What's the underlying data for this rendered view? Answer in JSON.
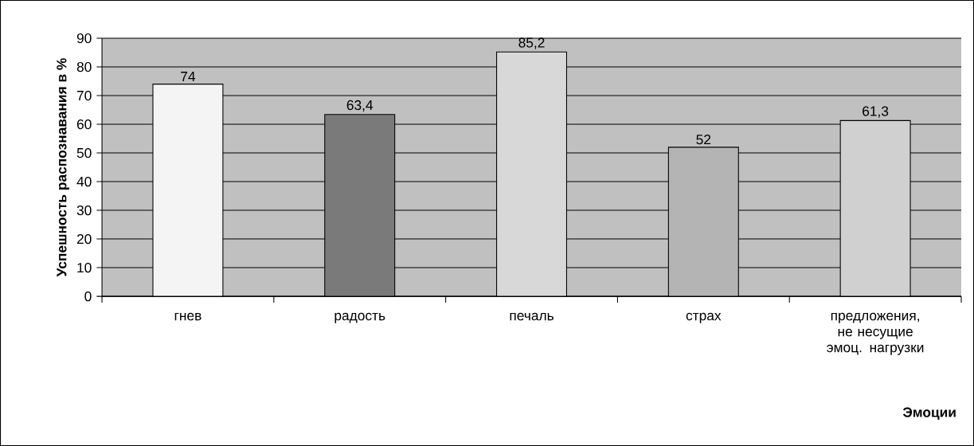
{
  "chart_data": {
    "type": "bar",
    "xlabel": "Эмоции",
    "ylabel": "Успешность распознавания в %",
    "categories": [
      "гнев",
      "радость",
      "печаль",
      "страх",
      "предложения, не несущие эмоц. нагрузки"
    ],
    "values": [
      74,
      63.4,
      85.2,
      52,
      61.3
    ],
    "value_labels": [
      "74",
      "63,4",
      "85,2",
      "52",
      "61,3"
    ],
    "colors": [
      "#f4f4f4",
      "#7a7a7a",
      "#d8d8d8",
      "#b4b4b4",
      "#d0d0d0"
    ],
    "ylim": [
      0,
      90
    ],
    "yticks": [
      0,
      10,
      20,
      30,
      40,
      50,
      60,
      70,
      80,
      90
    ],
    "grid": "y"
  }
}
